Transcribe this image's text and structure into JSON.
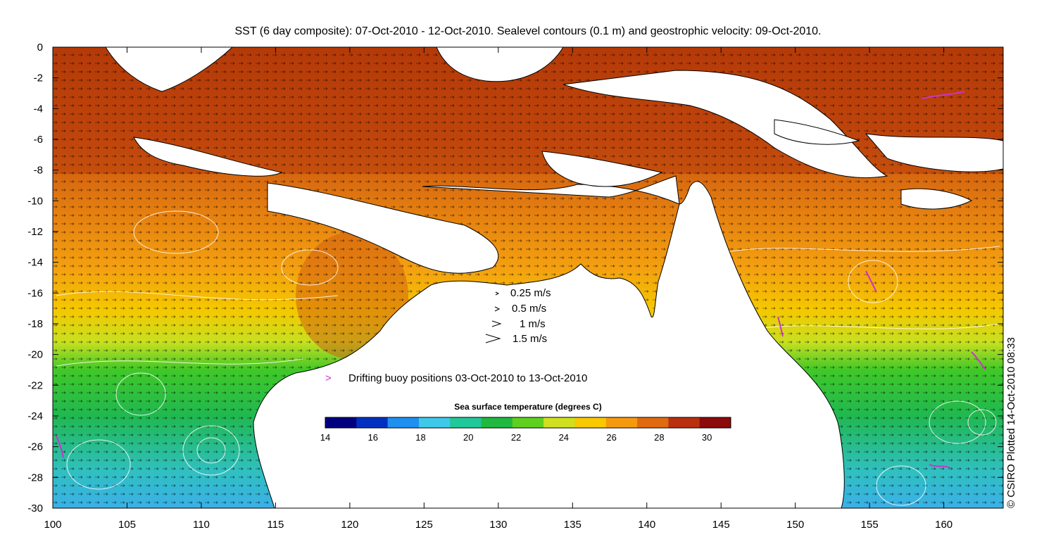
{
  "title": "SST (6 day composite): 07-Oct-2010 - 12-Oct-2010. Sealevel contours (0.1 m) and geostrophic velocity: 09-Oct-2010.",
  "credit": "© CSIRO Plotted 14-Oct-2010 08:33",
  "axes": {
    "x_ticks": [
      "100",
      "105",
      "110",
      "115",
      "120",
      "125",
      "130",
      "135",
      "140",
      "145",
      "150",
      "155",
      "160"
    ],
    "y_ticks": [
      "0",
      "-2",
      "-4",
      "-6",
      "-8",
      "-10",
      "-12",
      "-14",
      "-16",
      "-18",
      "-20",
      "-22",
      "-24",
      "-26",
      "-28",
      "-30"
    ],
    "lon_range": [
      100,
      164
    ],
    "lat_range": [
      -30,
      0
    ]
  },
  "velocity_legend": [
    {
      "label": "0.25 m/s"
    },
    {
      "label": "0.5 m/s"
    },
    {
      "label": "1 m/s"
    },
    {
      "label": "1.5 m/s"
    }
  ],
  "buoy_legend": {
    "label": "Drifting buoy positions 03-Oct-2010 to 13-Oct-2010",
    "symbol": ">",
    "color": "#cc33cc"
  },
  "colorbar": {
    "title": "Sea surface temperature (degrees C)",
    "range": [
      14,
      31
    ],
    "ticks": [
      "14",
      "16",
      "18",
      "20",
      "22",
      "24",
      "26",
      "28",
      "30"
    ],
    "colors": [
      "#00007f",
      "#0030c0",
      "#1f8ff0",
      "#3fc8e8",
      "#20c89a",
      "#20b840",
      "#60d020",
      "#d0e020",
      "#f8c800",
      "#f59a10",
      "#e06a10",
      "#b83010",
      "#8b0a0a"
    ]
  },
  "colors": {
    "land": "#ffffff",
    "coast": "#000000",
    "contour": "#ffffff",
    "warm": "#c8520e",
    "buoy": "#cc33cc"
  }
}
